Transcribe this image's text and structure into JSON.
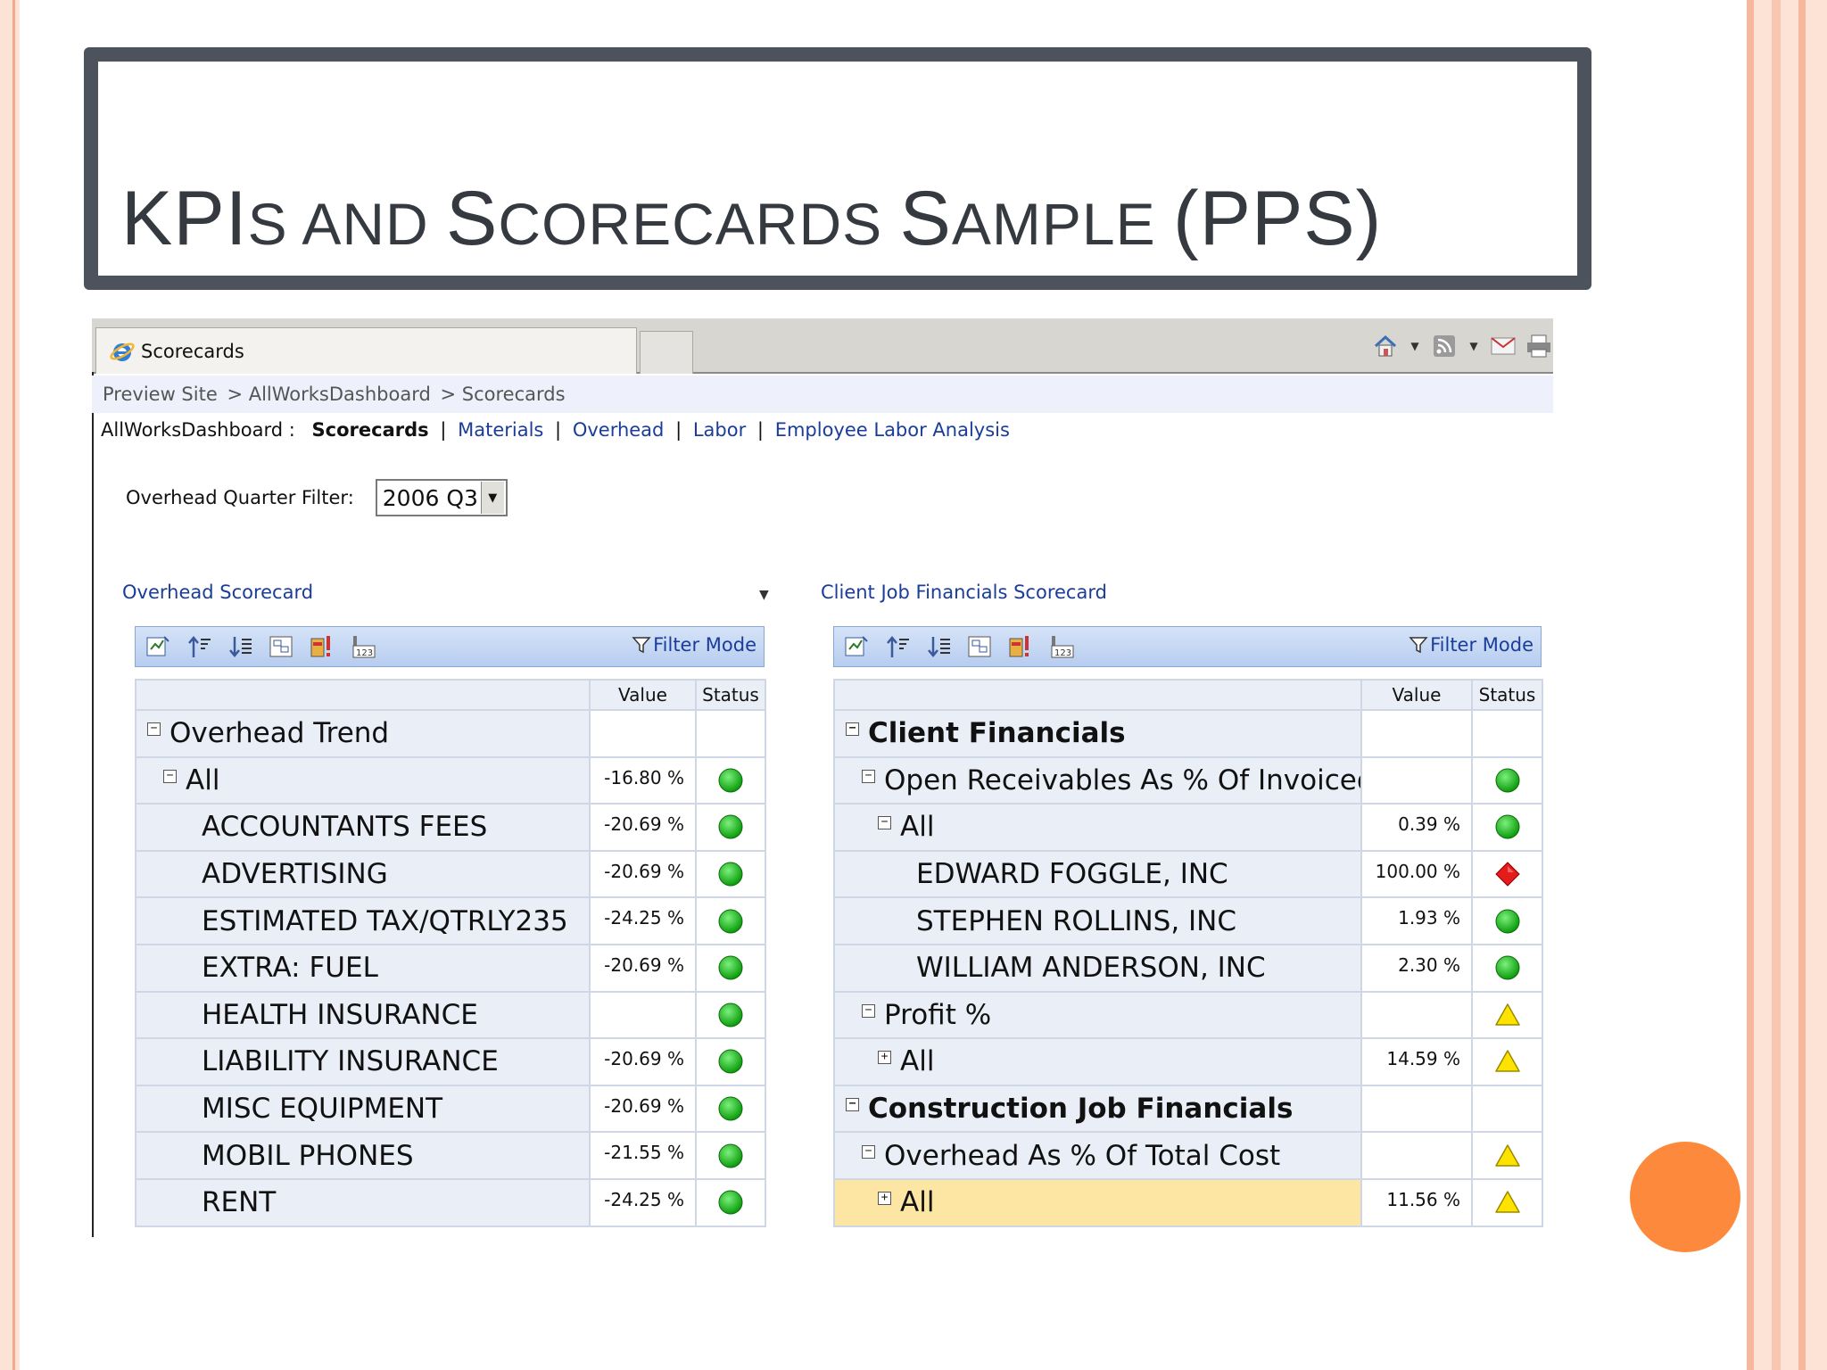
{
  "slide": {
    "title_parts": [
      {
        "text": "KPI",
        "cls": ""
      },
      {
        "text": "S AND ",
        "cls": "sc"
      },
      {
        "text": "S",
        "cls": ""
      },
      {
        "text": "CORECARDS ",
        "cls": "sc"
      },
      {
        "text": "S",
        "cls": ""
      },
      {
        "text": "AMPLE ",
        "cls": "sc"
      },
      {
        "text": "(PPS)",
        "cls": ""
      }
    ],
    "colors": {
      "frame": "#4d535c",
      "accent_dot": "#fd8a3c",
      "border_peach": "#fde3d6"
    }
  },
  "browser": {
    "tab_label": "Scorecards",
    "tab_icon": "ie-icon",
    "toolbar_icons": [
      "home-icon",
      "rss-feed-icon",
      "mail-icon",
      "print-icon"
    ]
  },
  "breadcrumb": [
    "Preview Site",
    "> AllWorksDashboard",
    "> Scorecards"
  ],
  "nav": {
    "site": "AllWorksDashboard :",
    "current": "Scorecards",
    "links": [
      "Materials",
      "Overhead",
      "Labor",
      "Employee Labor Analysis"
    ]
  },
  "filter": {
    "label": "Overhead Quarter Filter:",
    "value": "2006 Q3"
  },
  "overhead": {
    "title": "Overhead Scorecard",
    "filter_mode": "Filter Mode",
    "col_value": "Value",
    "col_status": "Status",
    "rows": [
      {
        "name": "Overhead Trend",
        "level": 0,
        "toggle": "−",
        "value": "",
        "status": "",
        "bold": false
      },
      {
        "name": "All",
        "level": 1,
        "toggle": "−",
        "value": "-16.80 %",
        "status": "green"
      },
      {
        "name": "ACCOUNTANTS FEES",
        "level": 2,
        "value": "-20.69 %",
        "status": "green"
      },
      {
        "name": "ADVERTISING",
        "level": 2,
        "value": "-20.69 %",
        "status": "green"
      },
      {
        "name": "ESTIMATED TAX/QTRLY235",
        "level": 2,
        "value": "-24.25 %",
        "status": "green"
      },
      {
        "name": "EXTRA: FUEL",
        "level": 2,
        "value": "-20.69 %",
        "status": "green"
      },
      {
        "name": "HEALTH INSURANCE",
        "level": 2,
        "value": "",
        "status": "green"
      },
      {
        "name": "LIABILITY INSURANCE",
        "level": 2,
        "value": "-20.69 %",
        "status": "green"
      },
      {
        "name": "MISC EQUIPMENT",
        "level": 2,
        "value": "-20.69 %",
        "status": "green"
      },
      {
        "name": "MOBIL PHONES",
        "level": 2,
        "value": "-21.55 %",
        "status": "green"
      },
      {
        "name": "RENT",
        "level": 2,
        "value": "-24.25 %",
        "status": "green"
      }
    ]
  },
  "client": {
    "title": "Client Job Financials Scorecard",
    "filter_mode": "Filter Mode",
    "col_value": "Value",
    "col_status": "Status",
    "rows": [
      {
        "name": "Client Financials",
        "level": 0,
        "toggle": "−",
        "value": "",
        "status": "",
        "bold": true
      },
      {
        "name": "Open Receivables As % Of Invoiced",
        "level": 1,
        "toggle": "−",
        "value": "",
        "status": "green"
      },
      {
        "name": "All",
        "level": 2,
        "toggle": "−",
        "value": "0.39 %",
        "status": "green"
      },
      {
        "name": "EDWARD FOGGLE, INC",
        "level": 3,
        "value": "100.00 %",
        "status": "red"
      },
      {
        "name": "STEPHEN ROLLINS, INC",
        "level": 3,
        "value": "1.93 %",
        "status": "green"
      },
      {
        "name": "WILLIAM ANDERSON, INC",
        "level": 3,
        "value": "2.30 %",
        "status": "green"
      },
      {
        "name": "Profit %",
        "level": 1,
        "toggle": "−",
        "value": "",
        "status": "yellow"
      },
      {
        "name": "All",
        "level": 2,
        "toggle": "+",
        "value": "14.59 %",
        "status": "yellow"
      },
      {
        "name": "Construction Job Financials",
        "level": 0,
        "toggle": "−",
        "value": "",
        "status": "",
        "bold": true
      },
      {
        "name": "Overhead As % Of Total Cost",
        "level": 1,
        "toggle": "−",
        "value": "",
        "status": "yellow"
      },
      {
        "name": "All",
        "level": 2,
        "toggle": "+",
        "value": "11.56 %",
        "status": "yellow",
        "selected": true
      }
    ]
  }
}
